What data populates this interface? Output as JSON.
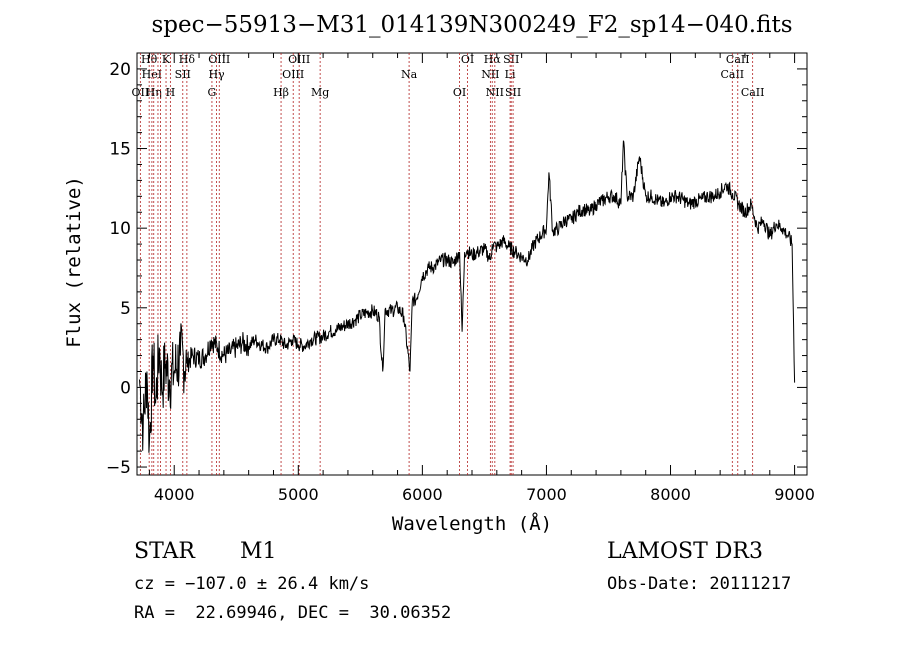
{
  "chart_data": {
    "type": "line",
    "title": "spec−55913−M31_014139N300249_F2_sp14−040.fits",
    "xlabel": "Wavelength (Å)",
    "ylabel": "Flux (relative)",
    "xlim": [
      3700,
      9100
    ],
    "ylim": [
      -5.5,
      21
    ],
    "x_ticks": [
      4000,
      5000,
      6000,
      7000,
      8000,
      9000
    ],
    "x_tick_labels": [
      "4000",
      "5000",
      "6000",
      "7000",
      "8000",
      "9000"
    ],
    "y_ticks": [
      -5,
      0,
      5,
      10,
      15,
      20
    ],
    "y_tick_labels": [
      "−5",
      "0",
      "5",
      "10",
      "15",
      "20"
    ],
    "line_color": "#000000",
    "marker_color": "#b22222",
    "series": [
      {
        "name": "flux",
        "x": [
          3720,
          3750,
          3780,
          3800,
          3830,
          3850,
          3880,
          3900,
          3930,
          3960,
          4000,
          4050,
          4100,
          4150,
          4200,
          4250,
          4300,
          4350,
          4400,
          4450,
          4500,
          4550,
          4600,
          4650,
          4700,
          4750,
          4800,
          4850,
          4900,
          4950,
          5000,
          5050,
          5100,
          5150,
          5200,
          5250,
          5300,
          5350,
          5400,
          5450,
          5500,
          5550,
          5600,
          5650,
          5680,
          5700,
          5750,
          5800,
          5850,
          5900,
          5920,
          5950,
          6000,
          6050,
          6100,
          6150,
          6200,
          6250,
          6300,
          6320,
          6340,
          6360,
          6400,
          6450,
          6500,
          6550,
          6563,
          6600,
          6650,
          6700,
          6750,
          6800,
          6850,
          6900,
          6950,
          7000,
          7020,
          7050,
          7100,
          7150,
          7200,
          7250,
          7300,
          7350,
          7400,
          7450,
          7500,
          7550,
          7600,
          7620,
          7650,
          7700,
          7750,
          7800,
          7850,
          7900,
          7950,
          8000,
          8050,
          8100,
          8150,
          8200,
          8250,
          8300,
          8350,
          8400,
          8450,
          8500,
          8550,
          8600,
          8650,
          8700,
          8750,
          8800,
          8850,
          8900,
          8950,
          8980,
          9000
        ],
        "y": [
          0.5,
          -2.5,
          1.0,
          -3.5,
          2.0,
          -1.0,
          2.5,
          0.0,
          1.5,
          0.5,
          1.0,
          2.0,
          1.5,
          2.0,
          1.8,
          2.0,
          3.0,
          2.5,
          2.0,
          2.2,
          2.5,
          2.8,
          2.6,
          3.0,
          2.7,
          2.5,
          3.0,
          3.0,
          2.6,
          3.0,
          2.7,
          2.6,
          3.0,
          3.1,
          3.2,
          3.5,
          3.6,
          3.8,
          4.0,
          4.2,
          4.5,
          4.7,
          4.8,
          4.5,
          1.0,
          4.9,
          4.8,
          5.0,
          4.5,
          1.0,
          5.5,
          5.5,
          7.0,
          7.5,
          7.6,
          8.0,
          8.0,
          7.8,
          8.5,
          3.5,
          8.5,
          8.6,
          8.3,
          8.5,
          8.7,
          8.0,
          9.0,
          8.8,
          9.2,
          8.8,
          8.5,
          8.2,
          8.0,
          9.0,
          9.5,
          10.0,
          13.5,
          9.8,
          10.0,
          10.5,
          10.5,
          11.0,
          11.2,
          11.0,
          11.5,
          11.7,
          12.0,
          12.0,
          11.5,
          15.5,
          12.0,
          12.0,
          14.5,
          12.0,
          12.0,
          11.7,
          11.5,
          12.0,
          12.0,
          11.8,
          11.5,
          11.7,
          11.8,
          12.0,
          12.0,
          12.3,
          12.7,
          12.2,
          11.5,
          11.0,
          11.5,
          10.0,
          10.5,
          9.5,
          10.3,
          10.0,
          9.5,
          9.0,
          0.3
        ]
      }
    ],
    "line_markers": [
      {
        "x": 3727,
        "label": "OII",
        "row": 3
      },
      {
        "x": 3798,
        "label": "Hθ",
        "row": 1
      },
      {
        "x": 3820,
        "label": "HeI",
        "row": 2
      },
      {
        "x": 3835,
        "label": "Hη",
        "row": 3
      },
      {
        "x": 3869,
        "label": "",
        "row": 0
      },
      {
        "x": 3889,
        "label": "",
        "row": 0
      },
      {
        "x": 3934,
        "label": "K",
        "row": 1
      },
      {
        "x": 3969,
        "label": "H",
        "row": 3
      },
      {
        "x": 4069,
        "label": "SII",
        "row": 2
      },
      {
        "x": 4102,
        "label": "Hδ",
        "row": 1
      },
      {
        "x": 4304,
        "label": "G",
        "row": 3
      },
      {
        "x": 4341,
        "label": "Hγ",
        "row": 2
      },
      {
        "x": 4363,
        "label": "OIII",
        "row": 1
      },
      {
        "x": 4861,
        "label": "Hβ",
        "row": 3
      },
      {
        "x": 4959,
        "label": "OIII",
        "row": 2
      },
      {
        "x": 5007,
        "label": "OIII",
        "row": 1
      },
      {
        "x": 5176,
        "label": "Mg",
        "row": 3
      },
      {
        "x": 5893,
        "label": "Na",
        "row": 2
      },
      {
        "x": 6300,
        "label": "OI",
        "row": 3
      },
      {
        "x": 6364,
        "label": "OI",
        "row": 1
      },
      {
        "x": 6548,
        "label": "NII",
        "row": 2
      },
      {
        "x": 6563,
        "label": "Hα",
        "row": 1
      },
      {
        "x": 6584,
        "label": "NII",
        "row": 3
      },
      {
        "x": 6707,
        "label": "Li",
        "row": 2
      },
      {
        "x": 6716,
        "label": "SII",
        "row": 1
      },
      {
        "x": 6731,
        "label": "SII",
        "row": 3
      },
      {
        "x": 8498,
        "label": "CaII",
        "row": 2
      },
      {
        "x": 8542,
        "label": "CaII",
        "row": 1
      },
      {
        "x": 8662,
        "label": "CaII",
        "row": 3
      }
    ]
  },
  "info": {
    "object_class": "STAR",
    "subclass": "M1",
    "survey": "LAMOST DR3",
    "cz": "cz = −107.0 ± 26.4 km/s",
    "obs_date": "Obs-Date: 20111217",
    "coords": "RA =  22.69946, DEC =  30.06352"
  }
}
